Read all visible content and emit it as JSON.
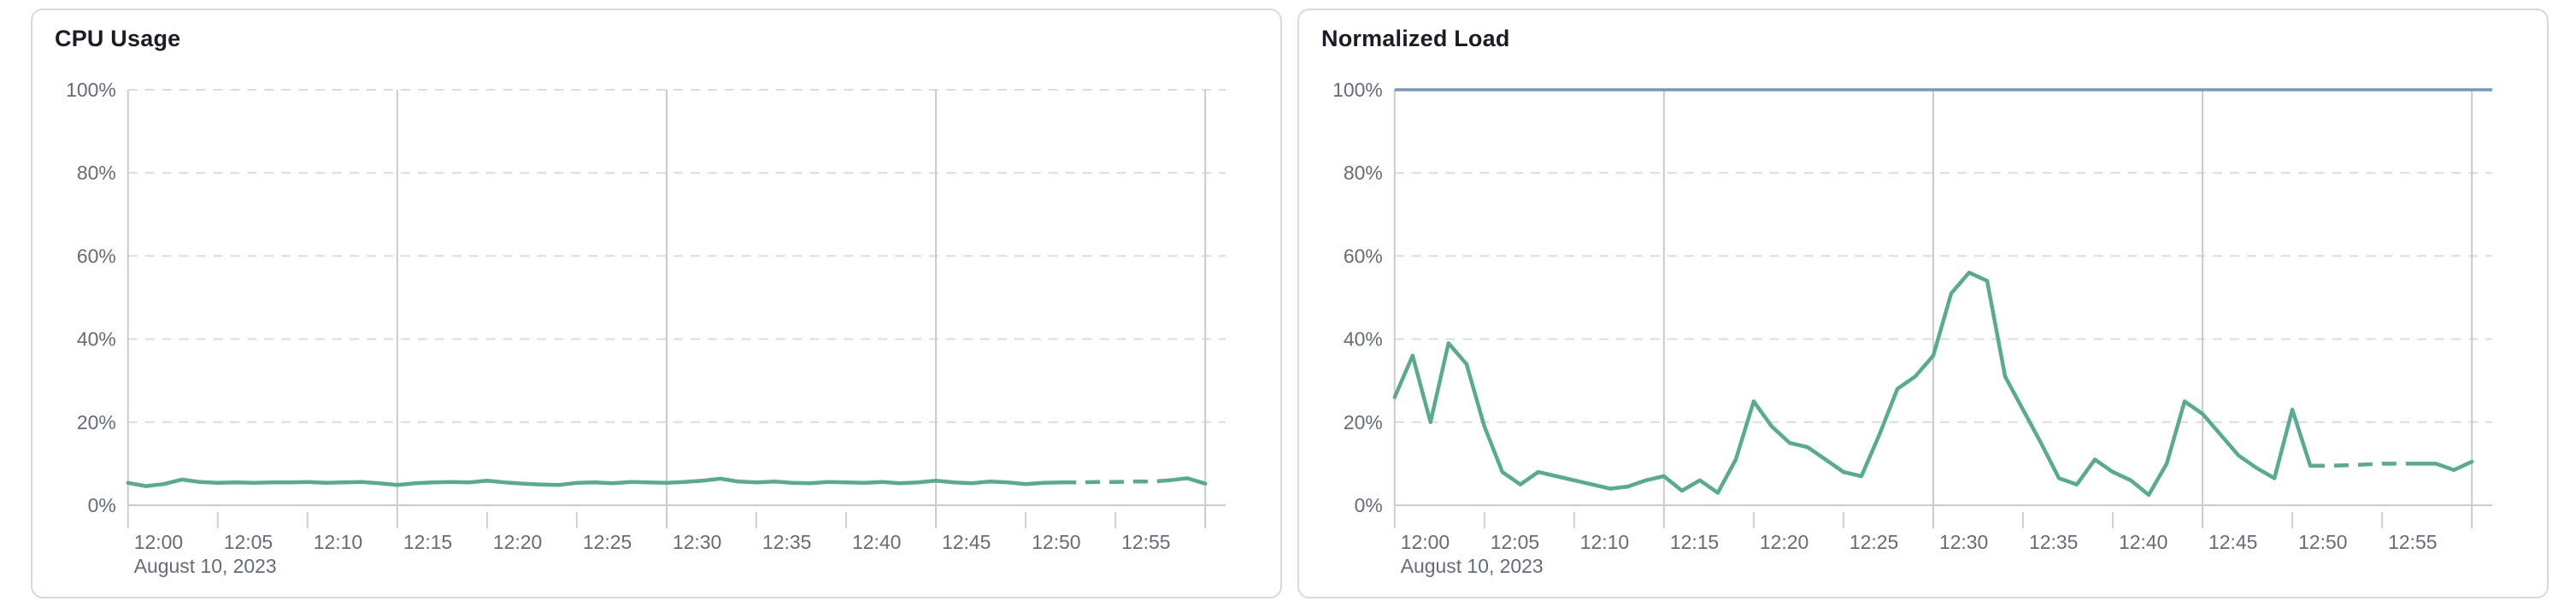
{
  "page": {
    "background_color": "#ffffff",
    "card_border_color": "#d3dae6",
    "title_color": "#1a1d23",
    "axis_label_color": "#646b79",
    "h_gridline_color": "#d8dce4",
    "v_gridline_color": "#c9cbd1",
    "axis_line_color": "#c6ccd4",
    "tick_color": "#cdd0d6"
  },
  "chart_data": [
    {
      "id": "cpu-usage",
      "type": "line",
      "title": "CPU Usage",
      "xlabel": "",
      "ylabel": "",
      "ylim": [
        0,
        100
      ],
      "x_range_minutes": [
        0,
        60
      ],
      "interval_minutes": 1,
      "x_axis": {
        "date_label": "August 10, 2023",
        "ticks": [
          {
            "minute": 0,
            "label": "12:00"
          },
          {
            "minute": 5,
            "label": "12:05"
          },
          {
            "minute": 10,
            "label": "12:10"
          },
          {
            "minute": 15,
            "label": "12:15"
          },
          {
            "minute": 20,
            "label": "12:20"
          },
          {
            "minute": 25,
            "label": "12:25"
          },
          {
            "minute": 30,
            "label": "12:30"
          },
          {
            "minute": 35,
            "label": "12:35"
          },
          {
            "minute": 40,
            "label": "12:40"
          },
          {
            "minute": 45,
            "label": "12:45"
          },
          {
            "minute": 50,
            "label": "12:50"
          },
          {
            "minute": 55,
            "label": "12:55"
          }
        ],
        "v_gridline_minutes": [
          15,
          30,
          45,
          60
        ]
      },
      "y_axis": {
        "ticks": [
          {
            "value": 0,
            "label": "0%"
          },
          {
            "value": 20,
            "label": "20%"
          },
          {
            "value": 40,
            "label": "40%"
          },
          {
            "value": 60,
            "label": "60%"
          },
          {
            "value": 80,
            "label": "80%"
          },
          {
            "value": 100,
            "label": "100%"
          }
        ]
      },
      "grid": {
        "horizontal_dashed": true,
        "legend": "none"
      },
      "threshold_line": null,
      "series": [
        {
          "name": "cpu-usage-percent",
          "color": "#57ab8f",
          "start": "12:00",
          "values_percent": [
            5.4,
            4.6,
            5.1,
            6.2,
            5.6,
            5.4,
            5.5,
            5.4,
            5.5,
            5.5,
            5.6,
            5.4,
            5.5,
            5.6,
            5.3,
            4.9,
            5.3,
            5.5,
            5.6,
            5.5,
            5.9,
            5.5,
            5.2,
            5.0,
            4.9,
            5.4,
            5.5,
            5.3,
            5.6,
            5.5,
            5.4,
            5.6,
            5.9,
            6.4,
            5.7,
            5.5,
            5.7,
            5.4,
            5.3,
            5.6,
            5.5,
            5.4,
            5.6,
            5.3,
            5.5,
            5.9,
            5.5,
            5.3,
            5.7,
            5.5,
            5.1,
            5.4,
            5.5,
            5.5,
            5.6,
            5.6,
            5.7,
            5.7,
            6.0,
            6.5,
            5.2
          ],
          "segments": [
            {
              "style": "solid",
              "from": 0,
              "to": 52
            },
            {
              "style": "dashed",
              "from": 52,
              "to": 58
            },
            {
              "style": "solid",
              "from": 58,
              "to": 60
            }
          ]
        }
      ]
    },
    {
      "id": "normalized-load",
      "type": "line",
      "title": "Normalized Load",
      "xlabel": "",
      "ylabel": "",
      "ylim": [
        0,
        100
      ],
      "x_range_minutes": [
        0,
        60
      ],
      "interval_minutes": 1,
      "x_axis": {
        "date_label": "August 10, 2023",
        "ticks": [
          {
            "minute": 0,
            "label": "12:00"
          },
          {
            "minute": 5,
            "label": "12:05"
          },
          {
            "minute": 10,
            "label": "12:10"
          },
          {
            "minute": 15,
            "label": "12:15"
          },
          {
            "minute": 20,
            "label": "12:20"
          },
          {
            "minute": 25,
            "label": "12:25"
          },
          {
            "minute": 30,
            "label": "12:30"
          },
          {
            "minute": 35,
            "label": "12:35"
          },
          {
            "minute": 40,
            "label": "12:40"
          },
          {
            "minute": 45,
            "label": "12:45"
          },
          {
            "minute": 50,
            "label": "12:50"
          },
          {
            "minute": 55,
            "label": "12:55"
          }
        ],
        "v_gridline_minutes": [
          15,
          30,
          45,
          60
        ]
      },
      "y_axis": {
        "ticks": [
          {
            "value": 0,
            "label": "0%"
          },
          {
            "value": 20,
            "label": "20%"
          },
          {
            "value": 40,
            "label": "40%"
          },
          {
            "value": 60,
            "label": "60%"
          },
          {
            "value": 80,
            "label": "80%"
          },
          {
            "value": 100,
            "label": "100%"
          }
        ]
      },
      "grid": {
        "horizontal_dashed": true,
        "legend": "none"
      },
      "threshold_line": {
        "value": 100,
        "color": "#7298c8"
      },
      "series": [
        {
          "name": "normalized-load-percent",
          "color": "#57ab8f",
          "start": "12:00",
          "values_percent": [
            26,
            36,
            20,
            39,
            34,
            19,
            8,
            5,
            8,
            7,
            6,
            5,
            4,
            4.5,
            6,
            7,
            3.5,
            6,
            3,
            11,
            25,
            19,
            15,
            14,
            11,
            8,
            7,
            17,
            28,
            31,
            36,
            51,
            56,
            54,
            31,
            23,
            15,
            6.5,
            5,
            11,
            8,
            6,
            2.5,
            10,
            25,
            22,
            17,
            12,
            9,
            6.5,
            23,
            9.5,
            9.5,
            9.6,
            9.8,
            10,
            10,
            10,
            10,
            8.5,
            10.5
          ],
          "segments": [
            {
              "style": "solid",
              "from": 0,
              "to": 51
            },
            {
              "style": "dashed",
              "from": 51,
              "to": 57
            },
            {
              "style": "solid",
              "from": 57,
              "to": 60
            }
          ]
        }
      ]
    }
  ]
}
